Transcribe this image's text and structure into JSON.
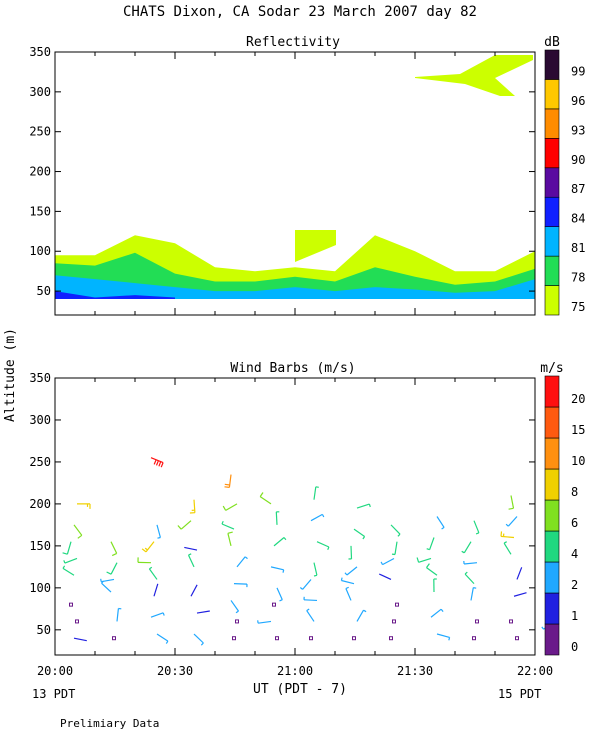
{
  "header": {
    "title": "CHATS Dixon, CA   Sodar  23 March 2007   day  82",
    "ylabel": "Altitude (m)",
    "xlabel": "UT  (PDT - 7)",
    "left_date": "13 PDT",
    "right_date": "15 PDT",
    "footer": "Prelimiary Data"
  },
  "chart_data": [
    {
      "type": "area",
      "title": "Reflectivity",
      "ylim": [
        20,
        350
      ],
      "xlim": [
        "20:00",
        "22:00"
      ],
      "xticks": [
        "20:00",
        "20:30",
        "21:00",
        "21:30",
        "22:00"
      ],
      "yticks": [
        50,
        100,
        150,
        200,
        250,
        300,
        350
      ],
      "colorbar": {
        "unit": "dB",
        "levels": [
          75,
          78,
          81,
          84,
          87,
          90,
          93,
          96,
          99
        ],
        "colors": [
          "#ccff00",
          "#22dd55",
          "#00b4ff",
          "#1020ff",
          "#5a0aa0",
          "#ff0000",
          "#ff8c00",
          "#ffc800",
          "#2a0a32"
        ]
      },
      "x_minutes": [
        0,
        10,
        20,
        30,
        40,
        50,
        60,
        70,
        80,
        90,
        100,
        110,
        120
      ],
      "series": [
        {
          "values": [
            95,
            95,
            120,
            110,
            80,
            75,
            80,
            75,
            120,
            100,
            75,
            75,
            100
          ],
          "color": "#ccff00"
        },
        {
          "values": [
            85,
            82,
            98,
            72,
            62,
            62,
            68,
            62,
            80,
            68,
            58,
            62,
            78
          ],
          "color": "#22dd55"
        },
        {
          "values": [
            70,
            65,
            60,
            55,
            50,
            50,
            55,
            50,
            55,
            52,
            48,
            50,
            65
          ],
          "color": "#00b4ff"
        },
        {
          "values": [
            50,
            42,
            45,
            42,
            null,
            null,
            null,
            null,
            null,
            null,
            null,
            null,
            null
          ],
          "color": "#1020ff"
        }
      ]
    },
    {
      "type": "scatter",
      "title": "Wind Barbs (m/s)",
      "ylim": [
        20,
        350
      ],
      "xlim": [
        "20:00",
        "22:00"
      ],
      "xticks": [
        "20:00",
        "20:30",
        "21:00",
        "21:30",
        "22:00"
      ],
      "yticks": [
        50,
        100,
        150,
        200,
        250,
        300,
        350
      ],
      "colorbar": {
        "unit": "m/s",
        "levels": [
          0,
          1,
          2,
          4,
          6,
          8,
          10,
          15,
          20
        ],
        "colors": [
          "#6a1a8a",
          "#2020e0",
          "#20a8ff",
          "#20d880",
          "#80e020",
          "#f0d000",
          "#ff9010",
          "#ff5a10",
          "#ff1010"
        ]
      },
      "barbs": [
        {
          "t": 0,
          "h": 200,
          "s": 8
        },
        {
          "t": 0,
          "h": 175,
          "s": 6
        },
        {
          "t": 0,
          "h": 155,
          "s": 5
        },
        {
          "t": 0,
          "h": 135,
          "s": 4
        },
        {
          "t": 0,
          "h": 115,
          "s": 4
        },
        {
          "t": 0,
          "h": 80,
          "s": 0
        },
        {
          "t": 0,
          "h": 60,
          "s": 0
        },
        {
          "t": 0,
          "h": 40,
          "s": 1
        },
        {
          "t": 10,
          "h": 155,
          "s": 6
        },
        {
          "t": 10,
          "h": 130,
          "s": 5
        },
        {
          "t": 10,
          "h": 110,
          "s": 3
        },
        {
          "t": 10,
          "h": 95,
          "s": 2
        },
        {
          "t": 10,
          "h": 60,
          "s": 2
        },
        {
          "t": 10,
          "h": 40,
          "s": 0
        },
        {
          "t": 20,
          "h": 255,
          "s": 20
        },
        {
          "t": 20,
          "h": 175,
          "s": 3
        },
        {
          "t": 20,
          "h": 155,
          "s": 8
        },
        {
          "t": 20,
          "h": 130,
          "s": 6
        },
        {
          "t": 20,
          "h": 110,
          "s": 4
        },
        {
          "t": 20,
          "h": 90,
          "s": 1
        },
        {
          "t": 20,
          "h": 65,
          "s": 2
        },
        {
          "t": 20,
          "h": 45,
          "s": 2
        },
        {
          "t": 30,
          "h": 205,
          "s": 8
        },
        {
          "t": 30,
          "h": 180,
          "s": 6
        },
        {
          "t": 30,
          "h": 145,
          "s": 1
        },
        {
          "t": 30,
          "h": 125,
          "s": 4
        },
        {
          "t": 30,
          "h": 90,
          "s": 1
        },
        {
          "t": 30,
          "h": 70,
          "s": 1
        },
        {
          "t": 30,
          "h": 45,
          "s": 2
        },
        {
          "t": 40,
          "h": 235,
          "s": 10
        },
        {
          "t": 40,
          "h": 200,
          "s": 6
        },
        {
          "t": 40,
          "h": 170,
          "s": 4
        },
        {
          "t": 40,
          "h": 150,
          "s": 6
        },
        {
          "t": 40,
          "h": 125,
          "s": 3
        },
        {
          "t": 40,
          "h": 105,
          "s": 2
        },
        {
          "t": 40,
          "h": 85,
          "s": 2
        },
        {
          "t": 40,
          "h": 60,
          "s": 0
        },
        {
          "t": 40,
          "h": 40,
          "s": 0
        },
        {
          "t": 50,
          "h": 200,
          "s": 6
        },
        {
          "t": 50,
          "h": 175,
          "s": 4
        },
        {
          "t": 50,
          "h": 150,
          "s": 4
        },
        {
          "t": 50,
          "h": 125,
          "s": 3
        },
        {
          "t": 50,
          "h": 100,
          "s": 3
        },
        {
          "t": 50,
          "h": 80,
          "s": 0
        },
        {
          "t": 50,
          "h": 60,
          "s": 2
        },
        {
          "t": 50,
          "h": 40,
          "s": 0
        },
        {
          "t": 60,
          "h": 205,
          "s": 4
        },
        {
          "t": 60,
          "h": 180,
          "s": 3
        },
        {
          "t": 60,
          "h": 155,
          "s": 4
        },
        {
          "t": 60,
          "h": 130,
          "s": 4
        },
        {
          "t": 60,
          "h": 110,
          "s": 3
        },
        {
          "t": 60,
          "h": 85,
          "s": 3
        },
        {
          "t": 60,
          "h": 60,
          "s": 2
        },
        {
          "t": 60,
          "h": 40,
          "s": 0
        },
        {
          "t": 70,
          "h": 195,
          "s": 4
        },
        {
          "t": 70,
          "h": 170,
          "s": 4
        },
        {
          "t": 70,
          "h": 150,
          "s": 4
        },
        {
          "t": 70,
          "h": 125,
          "s": 3
        },
        {
          "t": 70,
          "h": 105,
          "s": 3
        },
        {
          "t": 70,
          "h": 85,
          "s": 3
        },
        {
          "t": 70,
          "h": 60,
          "s": 2
        },
        {
          "t": 70,
          "h": 40,
          "s": 0
        },
        {
          "t": 80,
          "h": 175,
          "s": 4
        },
        {
          "t": 80,
          "h": 155,
          "s": 4
        },
        {
          "t": 80,
          "h": 135,
          "s": 3
        },
        {
          "t": 80,
          "h": 110,
          "s": 1
        },
        {
          "t": 80,
          "h": 80,
          "s": 0
        },
        {
          "t": 80,
          "h": 60,
          "s": 0
        },
        {
          "t": 80,
          "h": 40,
          "s": 0
        },
        {
          "t": 90,
          "h": 185,
          "s": 3
        },
        {
          "t": 90,
          "h": 160,
          "s": 4
        },
        {
          "t": 90,
          "h": 135,
          "s": 5
        },
        {
          "t": 90,
          "h": 115,
          "s": 5
        },
        {
          "t": 90,
          "h": 95,
          "s": 4
        },
        {
          "t": 90,
          "h": 65,
          "s": 2
        },
        {
          "t": 90,
          "h": 45,
          "s": 3
        },
        {
          "t": 100,
          "h": 180,
          "s": 4
        },
        {
          "t": 100,
          "h": 155,
          "s": 4
        },
        {
          "t": 100,
          "h": 130,
          "s": 3
        },
        {
          "t": 100,
          "h": 105,
          "s": 4
        },
        {
          "t": 100,
          "h": 85,
          "s": 3
        },
        {
          "t": 100,
          "h": 60,
          "s": 0
        },
        {
          "t": 100,
          "h": 40,
          "s": 0
        },
        {
          "t": 110,
          "h": 210,
          "s": 6
        },
        {
          "t": 110,
          "h": 185,
          "s": 2
        },
        {
          "t": 110,
          "h": 160,
          "s": 8
        },
        {
          "t": 110,
          "h": 140,
          "s": 4
        },
        {
          "t": 110,
          "h": 110,
          "s": 1
        },
        {
          "t": 110,
          "h": 90,
          "s": 1
        },
        {
          "t": 110,
          "h": 60,
          "s": 0
        },
        {
          "t": 110,
          "h": 40,
          "s": 0
        },
        {
          "t": 120,
          "h": 60,
          "s": 2
        },
        {
          "t": 120,
          "h": 40,
          "s": 0
        }
      ]
    }
  ]
}
